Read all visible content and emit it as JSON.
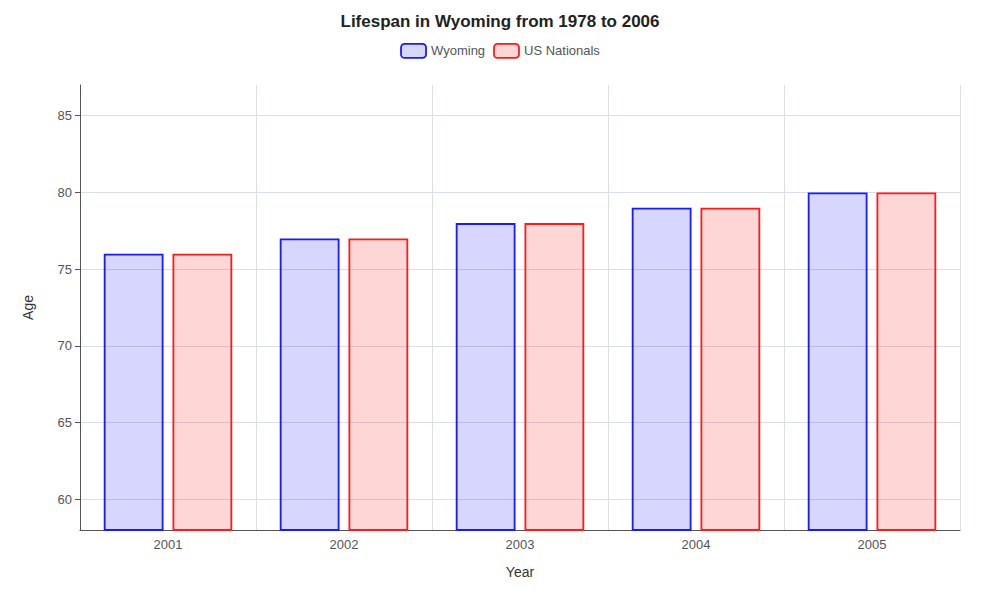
{
  "chart_data": {
    "type": "bar",
    "title": "Lifespan in Wyoming from 1978 to 2006",
    "xlabel": "Year",
    "ylabel": "Age",
    "categories": [
      "2001",
      "2002",
      "2003",
      "2004",
      "2005"
    ],
    "series": [
      {
        "name": "Wyoming",
        "color": "#1a1aff",
        "values": [
          76,
          77,
          78,
          79,
          80
        ]
      },
      {
        "name": "US Nationals",
        "color": "#ff1a1a",
        "values": [
          76,
          77,
          78,
          79,
          80
        ]
      }
    ],
    "ylim": [
      58,
      87
    ],
    "yticks": [
      60,
      65,
      70,
      75,
      80,
      85
    ],
    "grid": true,
    "legend": "top"
  }
}
